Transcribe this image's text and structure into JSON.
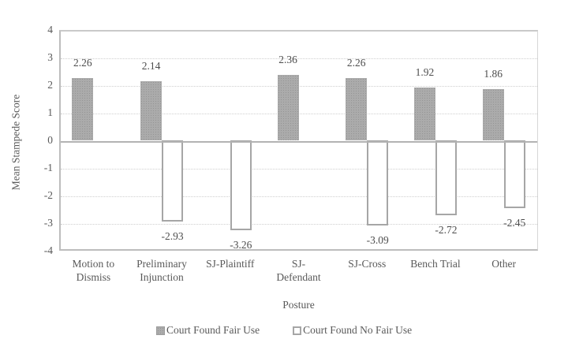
{
  "chart_data": {
    "type": "bar",
    "categories": [
      "Motion to\nDismiss",
      "Preliminary\nInjunction",
      "SJ-Plaintiff",
      "SJ-\nDefendant",
      "SJ-Cross",
      "Bench Trial",
      "Other"
    ],
    "series": [
      {
        "name": "Court Found Fair Use",
        "style": "solid-gray",
        "values": [
          2.26,
          2.14,
          null,
          2.36,
          2.26,
          1.92,
          1.86
        ],
        "labels": [
          "2.26",
          "2.14",
          "",
          "2.36",
          "2.26",
          "1.92",
          "1.86"
        ]
      },
      {
        "name": "Court Found No Fair Use",
        "style": "white-outline",
        "values": [
          null,
          -2.93,
          -3.26,
          null,
          -3.09,
          -2.72,
          -2.45
        ],
        "labels": [
          "",
          "-2.93",
          "-3.26",
          "",
          "-3.09",
          "-2.72",
          "-2.45"
        ]
      }
    ],
    "xlabel": "Posture",
    "ylabel": "Mean Stampede Score",
    "ylim": [
      -4,
      4
    ],
    "ytick_step": 1,
    "yticks": [
      4,
      3,
      2,
      1,
      0,
      -1,
      -2,
      -3,
      -4
    ],
    "grid": true,
    "legend_position": "bottom"
  },
  "colors": {
    "bar_fill": "#ababab",
    "bar_fill_dot": "#949494",
    "bar_outline": "#a6a6a6",
    "gridline": "#cfcfcf",
    "zero_line": "#b3b3b3",
    "axis_border": "#bdbdbd",
    "axis_text": "#595959",
    "data_label_text": "#4d4d4d"
  }
}
